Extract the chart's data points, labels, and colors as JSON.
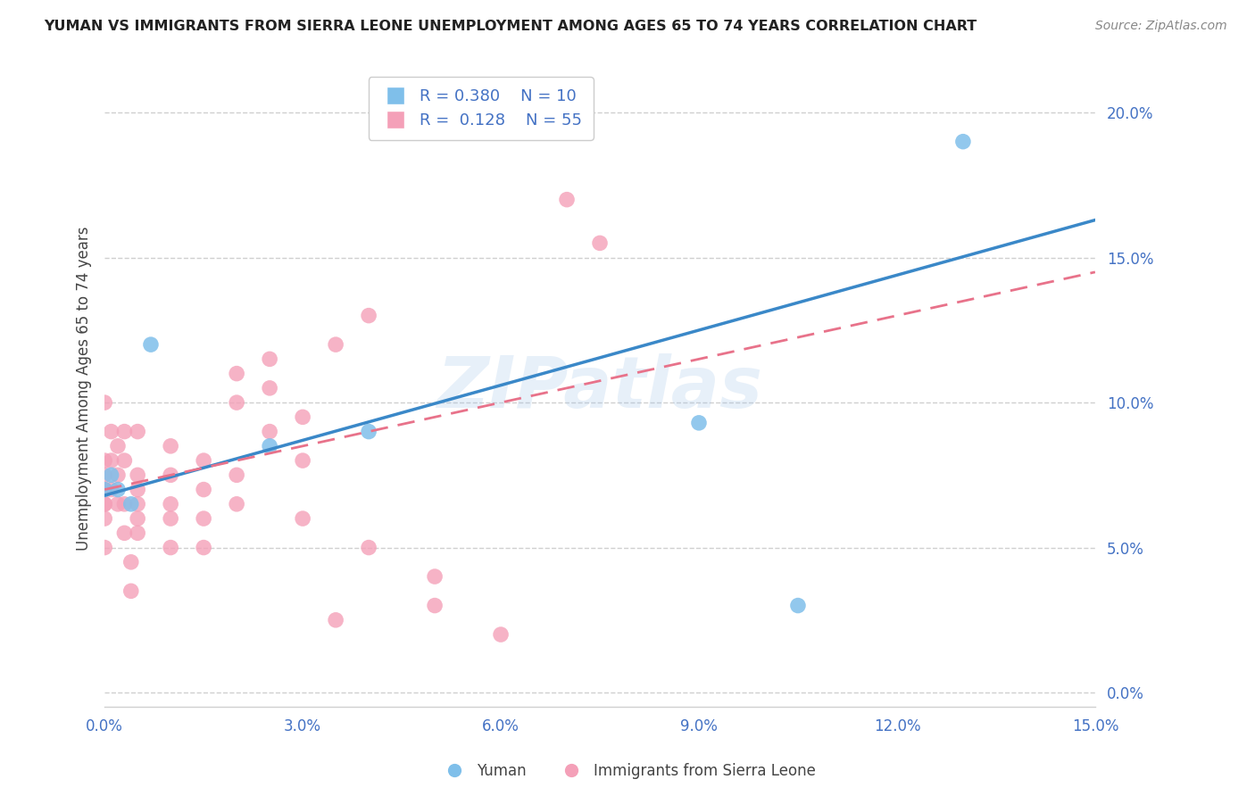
{
  "title": "YUMAN VS IMMIGRANTS FROM SIERRA LEONE UNEMPLOYMENT AMONG AGES 65 TO 74 YEARS CORRELATION CHART",
  "source": "Source: ZipAtlas.com",
  "ylabel": "Unemployment Among Ages 65 to 74 years",
  "xlim": [
    0.0,
    0.15
  ],
  "ylim": [
    -0.005,
    0.215
  ],
  "yuman_R": 0.38,
  "yuman_N": 10,
  "sierra_R": 0.128,
  "sierra_N": 55,
  "yuman_color": "#7fbfea",
  "sierra_color": "#f4a0b8",
  "yuman_line_color": "#3a88c8",
  "sierra_line_color": "#e8728a",
  "watermark_text": "ZIPatlas",
  "watermark_color": "#a0c4e8",
  "yticks": [
    0.0,
    0.05,
    0.1,
    0.15,
    0.2
  ],
  "xticks": [
    0.0,
    0.03,
    0.06,
    0.09,
    0.12,
    0.15
  ],
  "yuman_x": [
    0.0,
    0.001,
    0.002,
    0.004,
    0.007,
    0.025,
    0.04,
    0.09,
    0.105,
    0.13
  ],
  "yuman_y": [
    0.07,
    0.075,
    0.07,
    0.065,
    0.12,
    0.085,
    0.09,
    0.093,
    0.03,
    0.19
  ],
  "sierra_x": [
    0.0,
    0.0,
    0.0,
    0.0,
    0.0,
    0.0,
    0.0,
    0.0,
    0.0,
    0.005,
    0.005,
    0.005,
    0.005,
    0.005,
    0.005,
    0.01,
    0.01,
    0.01,
    0.01,
    0.01,
    0.015,
    0.015,
    0.015,
    0.015,
    0.02,
    0.02,
    0.02,
    0.02,
    0.025,
    0.025,
    0.025,
    0.03,
    0.03,
    0.03,
    0.035,
    0.035,
    0.04,
    0.04,
    0.05,
    0.05,
    0.06,
    0.07,
    0.075,
    0.001,
    0.001,
    0.001,
    0.002,
    0.002,
    0.002,
    0.003,
    0.003,
    0.003,
    0.003,
    0.004,
    0.004
  ],
  "sierra_y": [
    0.07,
    0.075,
    0.065,
    0.06,
    0.05,
    0.08,
    0.1,
    0.065,
    0.07,
    0.09,
    0.075,
    0.065,
    0.07,
    0.06,
    0.055,
    0.085,
    0.075,
    0.065,
    0.06,
    0.05,
    0.08,
    0.07,
    0.06,
    0.05,
    0.11,
    0.1,
    0.075,
    0.065,
    0.105,
    0.115,
    0.09,
    0.095,
    0.08,
    0.06,
    0.12,
    0.025,
    0.13,
    0.05,
    0.04,
    0.03,
    0.02,
    0.17,
    0.155,
    0.09,
    0.08,
    0.07,
    0.085,
    0.075,
    0.065,
    0.09,
    0.08,
    0.065,
    0.055,
    0.045,
    0.035
  ]
}
